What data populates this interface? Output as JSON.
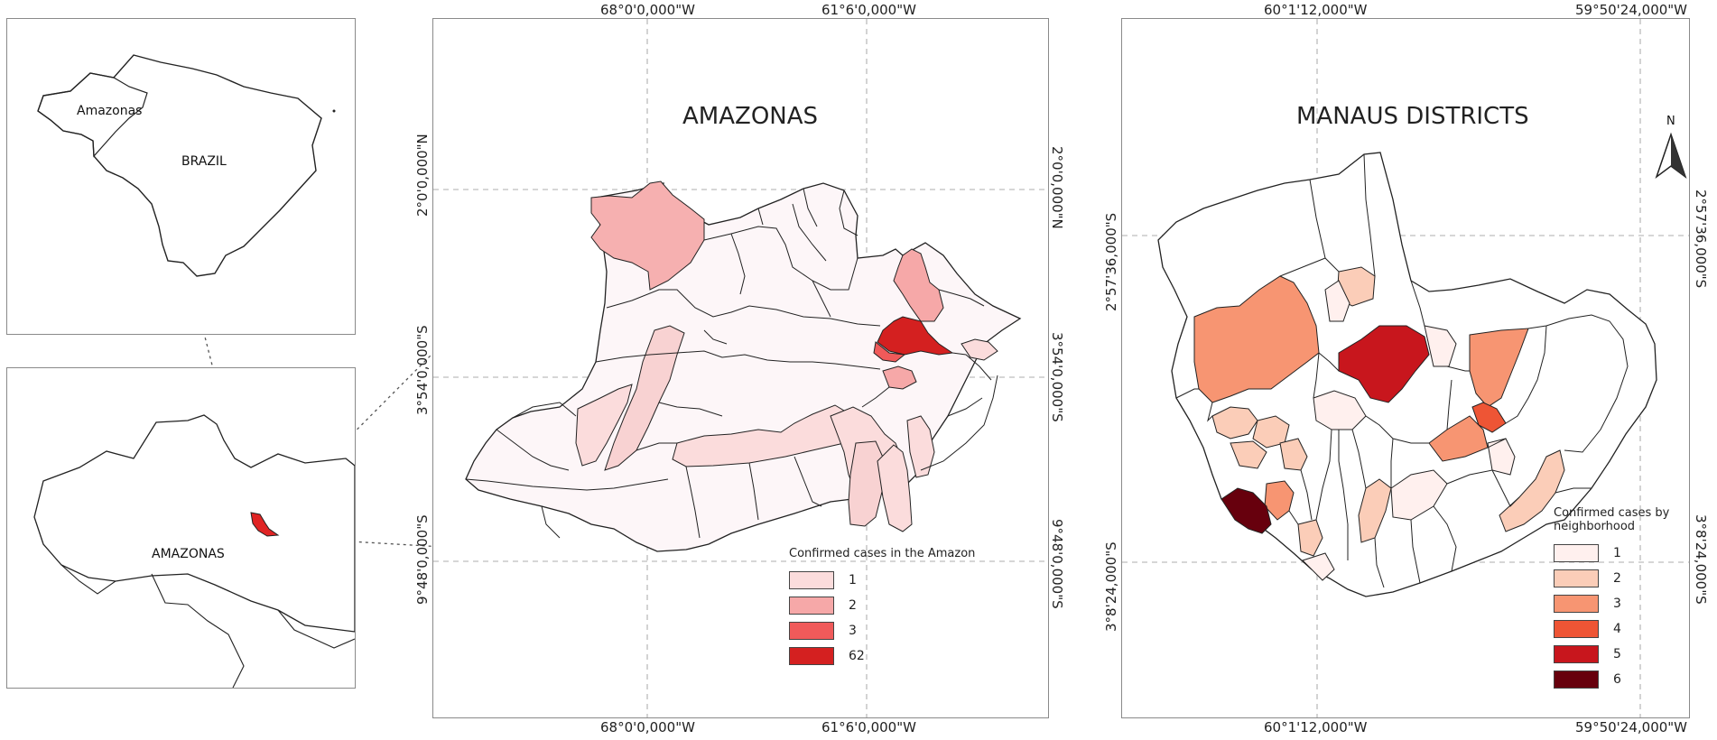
{
  "inset_brazil": {
    "amazonas_label": "Amazonas",
    "country_label": "BRAZIL"
  },
  "inset_amazonas": {
    "state_label": "AMAZONAS"
  },
  "amazonas_map": {
    "title": "AMAZONAS",
    "top_coords": [
      "68°0'0,000\"W",
      "61°6'0,000\"W"
    ],
    "bottom_coords": [
      "68°0'0,000\"W",
      "61°6'0,000\"W"
    ],
    "left_coords": [
      "2°0'0,000\"N",
      "3°54'0,000\"S",
      "9°48'0,000\"S"
    ],
    "right_coords": [
      "2°0'0,000\"N",
      "3°54'0,000\"S",
      "9°48'0,000\"S"
    ],
    "legend_title": "Confirmed cases in the Amazon",
    "legend": [
      {
        "label": "1",
        "color": "#fbdcdc"
      },
      {
        "label": "2",
        "color": "#f6a8a8"
      },
      {
        "label": "3",
        "color": "#f05a5a"
      },
      {
        "label": "62",
        "color": "#d42020"
      }
    ]
  },
  "manaus_map": {
    "title": "MANAUS DISTRICTS",
    "north_label": "N",
    "top_coords": [
      "60°1'12,000\"W",
      "59°50'24,000\"W"
    ],
    "bottom_coords": [
      "60°1'12,000\"W",
      "59°50'24,000\"W"
    ],
    "left_coords": [
      "2°57'36,000\"S",
      "3°8'24,000\"S"
    ],
    "right_coords": [
      "2°57'36,000\"S",
      "3°8'24,000\"S"
    ],
    "legend_title_1": "Confirmed cases by",
    "legend_title_2": "neighborhood",
    "legend": [
      {
        "label": "1",
        "color": "#fff0ee"
      },
      {
        "label": "2",
        "color": "#fbcdb8"
      },
      {
        "label": "3",
        "color": "#f79572"
      },
      {
        "label": "4",
        "color": "#ee5535"
      },
      {
        "label": "5",
        "color": "#c8161d"
      },
      {
        "label": "6",
        "color": "#67000d"
      }
    ]
  }
}
